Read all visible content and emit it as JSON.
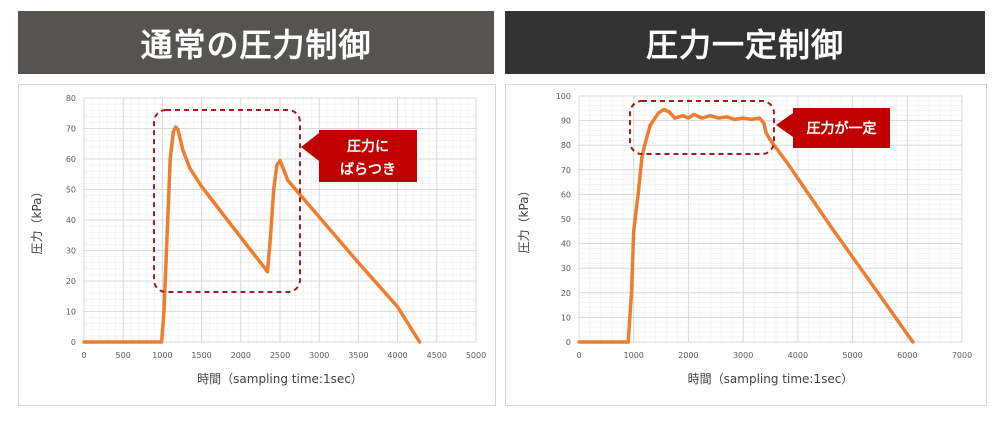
{
  "colors": {
    "line": "#ed7d31",
    "callout_fill": "#c00000",
    "dash": "#a31b1b",
    "header_left": "#555451",
    "header_right": "#333333",
    "grid": "#d9d9d9"
  },
  "headers": {
    "left": "通常の圧力制御",
    "right": "圧力一定制御"
  },
  "callouts": {
    "left_line1": "圧力に",
    "left_line2": "ばらつき",
    "right": "圧力が一定"
  },
  "chart_data": [
    {
      "type": "line",
      "title": "通常の圧力制御",
      "xlabel": "時間（sampling time:1sec）",
      "ylabel": "圧力（kPa）",
      "xlim": [
        0,
        5000
      ],
      "ylim": [
        0,
        80
      ],
      "xticks": [
        0,
        500,
        1000,
        1500,
        2000,
        2500,
        3000,
        3500,
        4000,
        4500,
        5000
      ],
      "yticks": [
        0,
        10,
        20,
        30,
        40,
        50,
        60,
        70,
        80
      ],
      "grid": true,
      "series": [
        {
          "values": [
            [
              0,
              0
            ],
            [
              990,
              0
            ],
            [
              1020,
              10
            ],
            [
              1060,
              35
            ],
            [
              1100,
              60
            ],
            [
              1140,
              69
            ],
            [
              1170,
              70.5
            ],
            [
              1200,
              69.5
            ],
            [
              1260,
              63
            ],
            [
              1350,
              57
            ],
            [
              1500,
              51
            ],
            [
              1800,
              41
            ],
            [
              2100,
              31
            ],
            [
              2300,
              24.5
            ],
            [
              2340,
              23
            ],
            [
              2380,
              35
            ],
            [
              2420,
              50
            ],
            [
              2460,
              58
            ],
            [
              2500,
              59.5
            ],
            [
              2540,
              57
            ],
            [
              2600,
              53
            ],
            [
              3000,
              41
            ],
            [
              3500,
              26
            ],
            [
              4000,
              11.5
            ],
            [
              4280,
              0
            ]
          ]
        }
      ]
    },
    {
      "type": "line",
      "title": "圧力一定制御",
      "xlabel": "時間（sampling time:1sec）",
      "ylabel": "圧力（kPa）",
      "xlim": [
        0,
        7000
      ],
      "ylim": [
        0,
        100
      ],
      "xticks": [
        0,
        1000,
        2000,
        3000,
        4000,
        5000,
        6000,
        7000
      ],
      "yticks": [
        0,
        10,
        20,
        30,
        40,
        50,
        60,
        70,
        80,
        90,
        100
      ],
      "grid": true,
      "series": [
        {
          "values": [
            [
              0,
              0
            ],
            [
              900,
              0
            ],
            [
              960,
              20
            ],
            [
              1000,
              45
            ],
            [
              1080,
              60
            ],
            [
              1150,
              75
            ],
            [
              1200,
              80
            ],
            [
              1300,
              88
            ],
            [
              1450,
              93
            ],
            [
              1550,
              94.5
            ],
            [
              1650,
              93.5
            ],
            [
              1750,
              91
            ],
            [
              1900,
              92
            ],
            [
              2000,
              91
            ],
            [
              2100,
              92.5
            ],
            [
              2250,
              91
            ],
            [
              2400,
              92
            ],
            [
              2550,
              91
            ],
            [
              2700,
              91.5
            ],
            [
              2850,
              90.5
            ],
            [
              3000,
              91
            ],
            [
              3150,
              90.5
            ],
            [
              3300,
              91
            ],
            [
              3380,
              89
            ],
            [
              3420,
              85
            ],
            [
              3500,
              82
            ],
            [
              3800,
              73
            ],
            [
              4200,
              60
            ],
            [
              4600,
              47
            ],
            [
              5000,
              34.5
            ],
            [
              5400,
              22
            ],
            [
              5800,
              9.5
            ],
            [
              6100,
              0
            ]
          ]
        }
      ]
    }
  ]
}
